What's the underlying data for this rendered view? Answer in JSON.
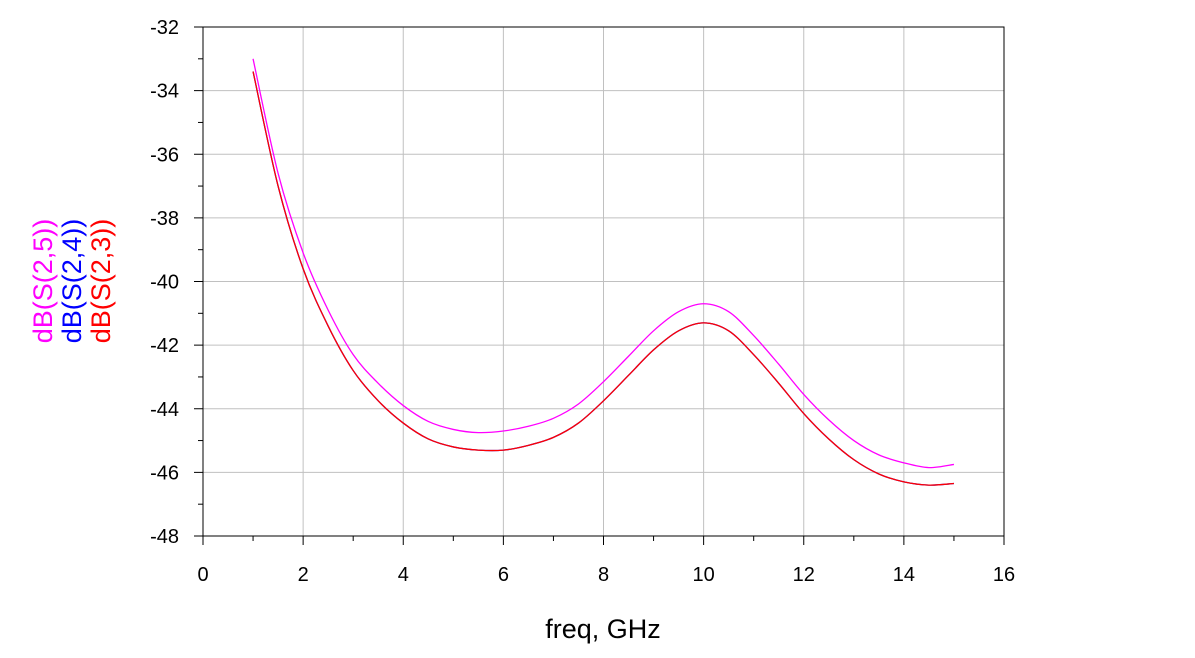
{
  "chart_data": {
    "type": "line",
    "title": "",
    "xlabel": "freq, GHz",
    "ylabel": "",
    "xlim": [
      0,
      16
    ],
    "ylim": [
      -48,
      -32
    ],
    "x_ticks": [
      0,
      2,
      4,
      6,
      8,
      10,
      12,
      14,
      16
    ],
    "y_ticks": [
      -32,
      -34,
      -36,
      -38,
      -40,
      -42,
      -44,
      -46,
      -48
    ],
    "x_minor_step": 1,
    "y_minor_step": 1,
    "grid": true,
    "legend_placement": "left, rotated vertical",
    "series": [
      {
        "name": "dB(S(2,5))",
        "color": "#ff00ff",
        "x": [
          1.0,
          1.5,
          2.0,
          2.5,
          3.0,
          3.5,
          4.0,
          4.5,
          5.0,
          5.5,
          6.0,
          6.5,
          7.0,
          7.5,
          8.0,
          8.5,
          9.0,
          9.5,
          10.0,
          10.5,
          11.0,
          11.5,
          12.0,
          12.5,
          13.0,
          13.5,
          14.0,
          14.5,
          15.0
        ],
        "y": [
          -33.0,
          -36.6,
          -39.1,
          -40.9,
          -42.3,
          -43.2,
          -43.9,
          -44.4,
          -44.65,
          -44.75,
          -44.7,
          -44.55,
          -44.3,
          -43.85,
          -43.15,
          -42.35,
          -41.55,
          -40.95,
          -40.7,
          -40.95,
          -41.7,
          -42.6,
          -43.55,
          -44.35,
          -45.0,
          -45.45,
          -45.7,
          -45.85,
          -45.75
        ]
      },
      {
        "name": "dB(S(2,4))",
        "color": "#0000ff",
        "x": [
          1.0,
          1.5,
          2.0,
          2.5,
          3.0,
          3.5,
          4.0,
          4.5,
          5.0,
          5.5,
          6.0,
          6.5,
          7.0,
          7.5,
          8.0,
          8.5,
          9.0,
          9.5,
          10.0,
          10.5,
          11.0,
          11.5,
          12.0,
          12.5,
          13.0,
          13.5,
          14.0,
          14.5,
          15.0
        ],
        "y": [
          -33.4,
          -37.0,
          -39.6,
          -41.4,
          -42.8,
          -43.75,
          -44.45,
          -44.95,
          -45.2,
          -45.3,
          -45.3,
          -45.15,
          -44.9,
          -44.45,
          -43.75,
          -42.95,
          -42.15,
          -41.55,
          -41.3,
          -41.55,
          -42.3,
          -43.2,
          -44.15,
          -44.95,
          -45.6,
          -46.05,
          -46.3,
          -46.4,
          -46.35
        ]
      },
      {
        "name": "dB(S(2,3))",
        "color": "#ff0000",
        "x": [
          1.0,
          1.5,
          2.0,
          2.5,
          3.0,
          3.5,
          4.0,
          4.5,
          5.0,
          5.5,
          6.0,
          6.5,
          7.0,
          7.5,
          8.0,
          8.5,
          9.0,
          9.5,
          10.0,
          10.5,
          11.0,
          11.5,
          12.0,
          12.5,
          13.0,
          13.5,
          14.0,
          14.5,
          15.0
        ],
        "y": [
          -33.4,
          -37.0,
          -39.6,
          -41.4,
          -42.8,
          -43.75,
          -44.45,
          -44.95,
          -45.2,
          -45.3,
          -45.3,
          -45.15,
          -44.9,
          -44.45,
          -43.75,
          -42.95,
          -42.15,
          -41.55,
          -41.3,
          -41.55,
          -42.3,
          -43.2,
          -44.15,
          -44.95,
          -45.6,
          -46.05,
          -46.3,
          -46.4,
          -46.35
        ]
      }
    ]
  }
}
